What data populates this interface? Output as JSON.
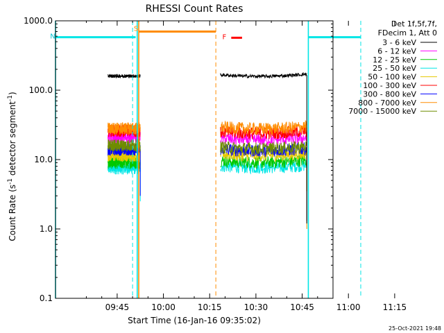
{
  "chart_data": {
    "type": "line",
    "title": "RHESSI Count Rates",
    "xlabel": "Start Time (16-Jan-16 09:35:02)",
    "ylabel_parts": [
      "Count Rate (s",
      "-1",
      " detector segment",
      "-1",
      ")"
    ],
    "yscale": "log",
    "ylim": [
      0.1,
      1000.0
    ],
    "xlim_minutes": [
      -10,
      80
    ],
    "x_ticks": [
      {
        "m": 10,
        "label": "09:45"
      },
      {
        "m": 25,
        "label": "10:00"
      },
      {
        "m": 40,
        "label": "10:15"
      },
      {
        "m": 55,
        "label": "10:30"
      },
      {
        "m": 70,
        "label": "10:45"
      },
      {
        "m": 85,
        "label": "11:00"
      },
      {
        "m": 100,
        "label": "11:15"
      }
    ],
    "y_ticks": [
      {
        "v": 0.1,
        "label": "0.1"
      },
      {
        "v": 1.0,
        "label": "1.0"
      },
      {
        "v": 10.0,
        "label": "10.0"
      },
      {
        "v": 100.0,
        "label": "100.0"
      },
      {
        "v": 1000.0,
        "label": "1000.0"
      }
    ],
    "legend": {
      "placement": "right",
      "header": [
        "Det 1f,5f,7f,",
        "FDecim 1, Att 0"
      ],
      "entries": [
        {
          "label": "3 - 6 keV",
          "color": "#000000"
        },
        {
          "label": "6 - 12 keV",
          "color": "#ff00ff"
        },
        {
          "label": "12 - 25 keV",
          "color": "#00c800"
        },
        {
          "label": "25 - 50 keV",
          "color": "#00e6e6"
        },
        {
          "label": "50 - 100 keV",
          "color": "#e6c800"
        },
        {
          "label": "100 - 300 keV",
          "color": "#ff0000"
        },
        {
          "label": "300 - 800 keV",
          "color": "#0000ff"
        },
        {
          "label": "800 - 7000 keV",
          "color": "#ff8c00"
        },
        {
          "label": "7000 - 15000 keV",
          "color": "#6e8c00"
        }
      ]
    },
    "segments": [
      {
        "t": [
          7.0,
          17.5
        ],
        "levels": [
          160,
          21,
          9.0,
          7.5,
          11.5,
          26,
          14,
          28,
          16
        ]
      },
      {
        "t": [
          43.5,
          71.5
        ],
        "levels": [
          165,
          20,
          9.5,
          8.0,
          12.0,
          25,
          14,
          29,
          15
        ]
      }
    ],
    "mode_bars": [
      {
        "label": "S",
        "label_color": "#ff8c00",
        "color": "#ff8c00",
        "t": [
          17.0,
          42.0
        ],
        "v": 700
      },
      {
        "label": "N",
        "label_color": "#00bfd0",
        "color": "#00e6e6",
        "t": [
          -10.0,
          16.0
        ],
        "v": 580
      },
      {
        "label": "",
        "label_color": "#00e6e6",
        "color": "#00e6e6",
        "t": [
          72.0,
          89.0
        ],
        "v": 580
      },
      {
        "label": "F",
        "label_color": "#ff0000",
        "color": "#ff0000",
        "t": [
          47.0,
          50.5
        ],
        "v": 570
      }
    ],
    "vlines": [
      {
        "m": -10,
        "color": "#00e6e6",
        "dash": false
      },
      {
        "m": 15.0,
        "color": "#00e6e6",
        "dash": true
      },
      {
        "m": 16.5,
        "color": "#00e6e6",
        "dash": false
      },
      {
        "m": 17.0,
        "color": "#ff8c00",
        "dash": false
      },
      {
        "m": 42.0,
        "color": "#ff8c00",
        "dash": true
      },
      {
        "m": 72.0,
        "color": "#00e6e6",
        "dash": false
      },
      {
        "m": 89.0,
        "color": "#00e6e6",
        "dash": true
      }
    ],
    "timestamp": "25-Oct-2021 19:48"
  }
}
